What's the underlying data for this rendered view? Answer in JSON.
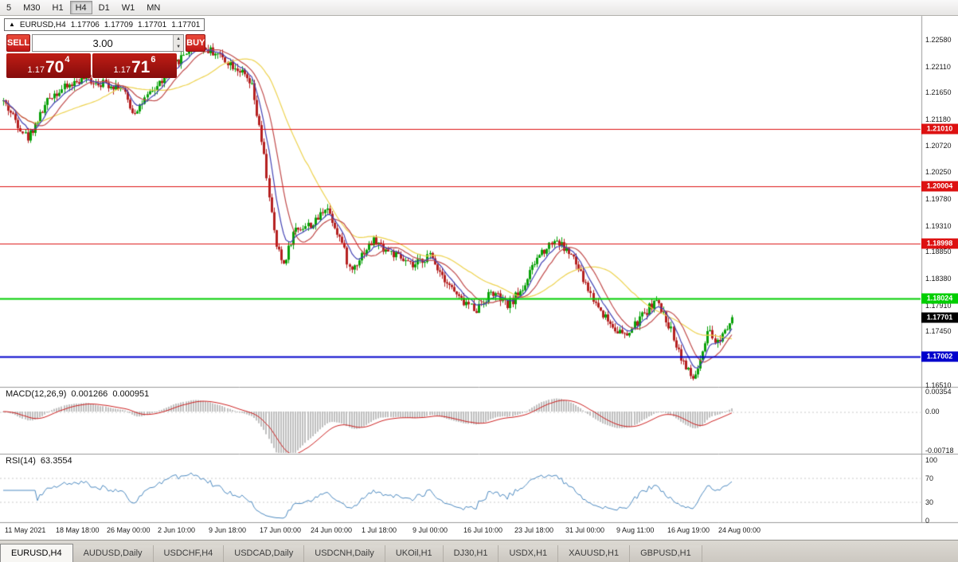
{
  "toolbar": {
    "timeframes": [
      {
        "label": "5",
        "active": false
      },
      {
        "label": "M30",
        "active": false
      },
      {
        "label": "H1",
        "active": false
      },
      {
        "label": "H4",
        "active": true
      },
      {
        "label": "D1",
        "active": false
      },
      {
        "label": "W1",
        "active": false
      },
      {
        "label": "MN",
        "active": false
      }
    ]
  },
  "ohlc": {
    "collapse_icon": "▲",
    "symbol": "EURUSD,H4",
    "open": "1.17706",
    "high": "1.17709",
    "low": "1.17701",
    "close": "1.17701"
  },
  "trade_panel": {
    "sell_label": "SELL",
    "buy_label": "BUY",
    "volume": "3.00",
    "spin_up_icon": "▲",
    "spin_down_icon": "▼",
    "sell_price": {
      "small": "1.17",
      "big": "70",
      "sup": "4"
    },
    "buy_price": {
      "small": "1.17",
      "big": "71",
      "sup": "6"
    }
  },
  "price_axis": {
    "ticks": [
      "1.22580",
      "1.22110",
      "1.21650",
      "1.21180",
      "1.20720",
      "1.20250",
      "1.19780",
      "1.19310",
      "1.18850",
      "1.18380",
      "1.17910",
      "1.17450",
      "1.16510"
    ]
  },
  "levels": [
    {
      "value": "1.21010",
      "color": "#dd1111",
      "line_width": 1
    },
    {
      "value": "1.20004",
      "color": "#dd1111",
      "line_width": 1
    },
    {
      "value": "1.18998",
      "color": "#dd1111",
      "line_width": 1
    },
    {
      "value": "1.18024",
      "color": "#00ce00",
      "line_width": 2
    },
    {
      "value": "1.17002",
      "color": "#0000cc",
      "line_width": 2
    }
  ],
  "current_price": {
    "value": "1.17701",
    "bg": "#000000",
    "text_color": "#ffffff"
  },
  "macd": {
    "name": "MACD(12,26,9)",
    "value_main": "0.001266",
    "value_signal": "0.000951",
    "axis_labels": [
      "0.00354",
      "0.00",
      "-0.00718"
    ]
  },
  "rsi": {
    "name": "RSI(14)",
    "value": "63.3554",
    "axis_labels": [
      "100",
      "70",
      "30",
      "0"
    ]
  },
  "time_axis": {
    "labels": [
      "11 May 2021",
      "18 May 18:00",
      "26 May 00:00",
      "2 Jun 10:00",
      "9 Jun 18:00",
      "17 Jun 00:00",
      "24 Jun 00:00",
      "1 Jul 18:00",
      "9 Jul 00:00",
      "16 Jul 10:00",
      "23 Jul 18:00",
      "31 Jul 00:00",
      "9 Aug 11:00",
      "16 Aug 19:00",
      "24 Aug 00:00"
    ]
  },
  "tabs": [
    {
      "label": "EURUSD,H4",
      "active": true
    },
    {
      "label": "AUDUSD,Daily",
      "active": false
    },
    {
      "label": "USDCHF,H4",
      "active": false
    },
    {
      "label": "USDCAD,Daily",
      "active": false
    },
    {
      "label": "USDCNH,Daily",
      "active": false
    },
    {
      "label": "UKOil,H1",
      "active": false
    },
    {
      "label": "DJ30,H1",
      "active": false
    },
    {
      "label": "USDX,H1",
      "active": false
    },
    {
      "label": "XAUUSD,H1",
      "active": false
    },
    {
      "label": "GBPUSD,H1",
      "active": false
    }
  ],
  "colors": {
    "up": "#0aa10a",
    "down": "#b52121",
    "macd_hist": "#bfbfbf",
    "macd_signal": "#cc2222",
    "rsi_line": "#4d8ac0",
    "separator": "#9a9a9a",
    "dotted": "#c9c9c9"
  },
  "chart_data": {
    "type": "candlestick",
    "symbol": "EURUSD",
    "timeframe": "H4",
    "visible_range": {
      "start": "11 May 2021",
      "end": "24 Aug 2021"
    },
    "price_range_approx": [
      1.165,
      1.2262
    ],
    "candle_count": 300,
    "seed": 42,
    "noise": 0.0008,
    "wick": 0.0009,
    "trend_path": [
      [
        0.0,
        1.215
      ],
      [
        0.033,
        1.2085
      ],
      [
        0.065,
        1.216
      ],
      [
        0.108,
        1.219
      ],
      [
        0.162,
        1.2175
      ],
      [
        0.178,
        1.213
      ],
      [
        0.2,
        1.216
      ],
      [
        0.232,
        1.221
      ],
      [
        0.26,
        1.225
      ],
      [
        0.292,
        1.2235
      ],
      [
        0.324,
        1.2205
      ],
      [
        0.341,
        1.2175
      ],
      [
        0.357,
        1.206
      ],
      [
        0.373,
        1.19
      ],
      [
        0.384,
        1.1862
      ],
      [
        0.4,
        1.1925
      ],
      [
        0.427,
        1.1935
      ],
      [
        0.443,
        1.1968
      ],
      [
        0.465,
        1.19
      ],
      [
        0.476,
        1.185
      ],
      [
        0.492,
        1.1882
      ],
      [
        0.508,
        1.1905
      ],
      [
        0.53,
        1.1885
      ],
      [
        0.562,
        1.1858
      ],
      [
        0.584,
        1.188
      ],
      [
        0.605,
        1.184
      ],
      [
        0.627,
        1.18
      ],
      [
        0.649,
        1.1785
      ],
      [
        0.67,
        1.1815
      ],
      [
        0.692,
        1.179
      ],
      [
        0.713,
        1.1822
      ],
      [
        0.735,
        1.188
      ],
      [
        0.757,
        1.1908
      ],
      [
        0.78,
        1.1878
      ],
      [
        0.81,
        1.18
      ],
      [
        0.832,
        1.176
      ],
      [
        0.854,
        1.1735
      ],
      [
        0.876,
        1.1772
      ],
      [
        0.895,
        1.18
      ],
      [
        0.913,
        1.1758
      ],
      [
        0.93,
        1.17
      ],
      [
        0.945,
        1.166
      ],
      [
        0.955,
        1.1682
      ],
      [
        0.968,
        1.1745
      ],
      [
        0.978,
        1.1722
      ],
      [
        0.989,
        1.1748
      ],
      [
        1.0,
        1.177
      ]
    ],
    "moving_averages": [
      {
        "type": "sma",
        "period": 34,
        "color": "#edd24e"
      },
      {
        "type": "sma",
        "period": 13,
        "color": "#c04a4a"
      },
      {
        "type": "ema",
        "period": 7,
        "color": "#4242b4"
      }
    ],
    "indicators": [
      {
        "name": "MACD",
        "params": [
          12,
          26,
          9
        ]
      },
      {
        "name": "RSI",
        "params": [
          14
        ]
      }
    ]
  }
}
